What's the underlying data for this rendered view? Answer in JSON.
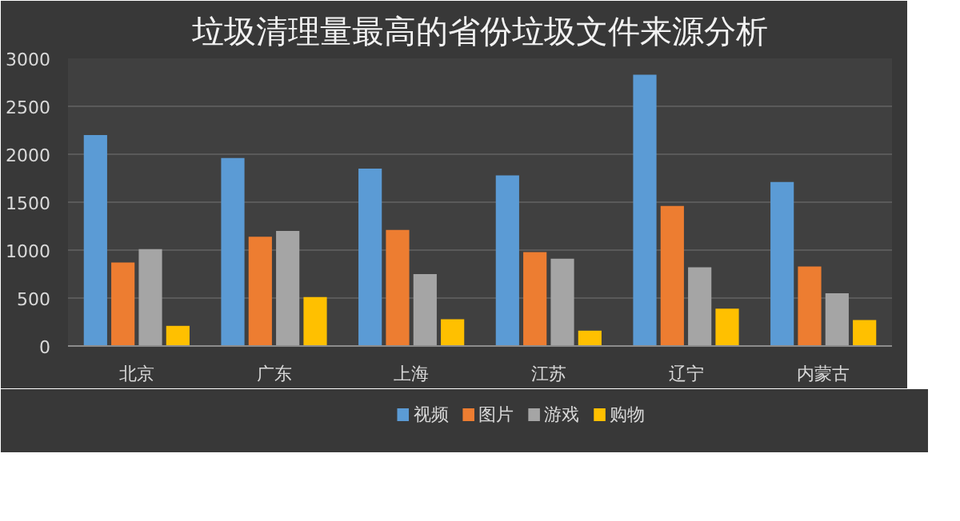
{
  "chart_data": {
    "type": "bar",
    "title": "垃圾清理量最高的省份垃圾文件来源分析",
    "categories": [
      "北京",
      "广东",
      "上海",
      "江苏",
      "辽宁",
      "内蒙古"
    ],
    "series": [
      {
        "name": "视频",
        "color": "#5b9bd5",
        "values": [
          2200,
          1960,
          1850,
          1780,
          2830,
          1710
        ]
      },
      {
        "name": "图片",
        "color": "#ed7d31",
        "values": [
          870,
          1140,
          1210,
          980,
          1460,
          830
        ]
      },
      {
        "name": "游戏",
        "color": "#a5a5a5",
        "values": [
          1010,
          1200,
          750,
          910,
          820,
          550
        ]
      },
      {
        "name": "购物",
        "color": "#ffc000",
        "values": [
          210,
          510,
          280,
          160,
          390,
          270
        ]
      }
    ],
    "ylim": [
      0,
      3000
    ],
    "yticks": [
      0,
      500,
      1000,
      1500,
      2000,
      2500,
      3000
    ],
    "grid": "y",
    "legend": "bottom"
  }
}
